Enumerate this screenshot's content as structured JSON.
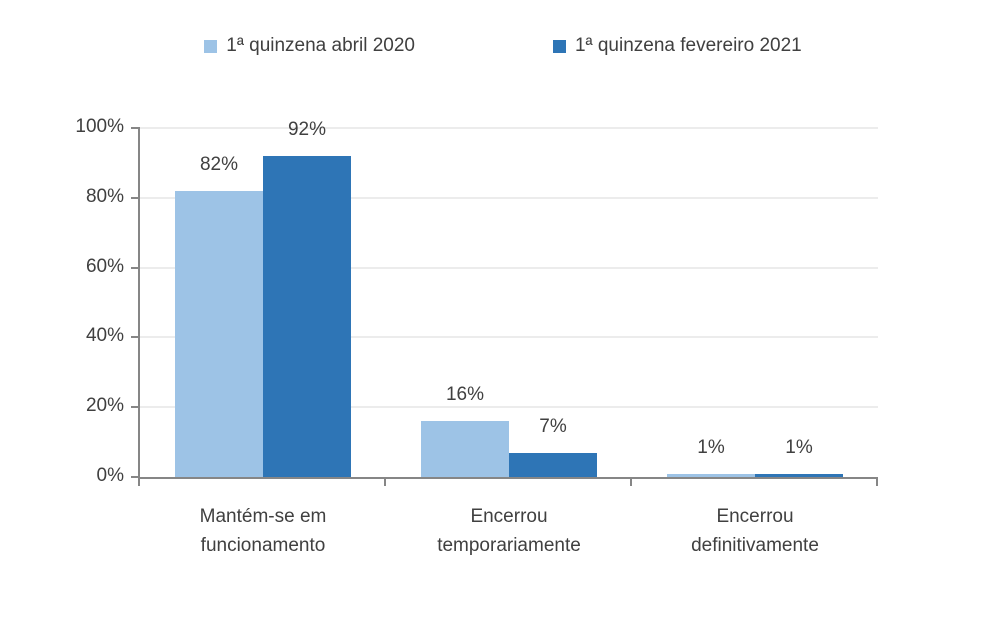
{
  "colors": {
    "series_april_2020": "#9DC3E6",
    "series_february_2021": "#2E75B6",
    "axis": "#868686",
    "grid": "#ECECEC",
    "text": "#404040",
    "background": "#FFFFFF"
  },
  "legend": [
    {
      "label": "1ª quinzena abril 2020",
      "color": "#9DC3E6"
    },
    {
      "label": "1ª quinzena fevereiro 2021",
      "color": "#2E75B6"
    }
  ],
  "chart_data": {
    "type": "bar",
    "categories": [
      "Mantém-se em funcionamento",
      "Encerrou temporariamente",
      "Encerrou definitivamente"
    ],
    "series": [
      {
        "name": "1ª quinzena abril 2020",
        "color": "#9DC3E6",
        "values": [
          82,
          16,
          1
        ]
      },
      {
        "name": "1ª quinzena fevereiro 2021",
        "color": "#2E75B6",
        "values": [
          92,
          7,
          1
        ]
      }
    ],
    "value_labels": [
      [
        "82%",
        "16%",
        "1%"
      ],
      [
        "92%",
        "7%",
        "1%"
      ]
    ],
    "yticks": [
      0,
      20,
      40,
      60,
      80,
      100
    ],
    "ytick_labels": [
      "0%",
      "20%",
      "40%",
      "60%",
      "80%",
      "100%"
    ],
    "ylim": [
      0,
      100
    ],
    "grid": true,
    "legend_position": "top"
  }
}
